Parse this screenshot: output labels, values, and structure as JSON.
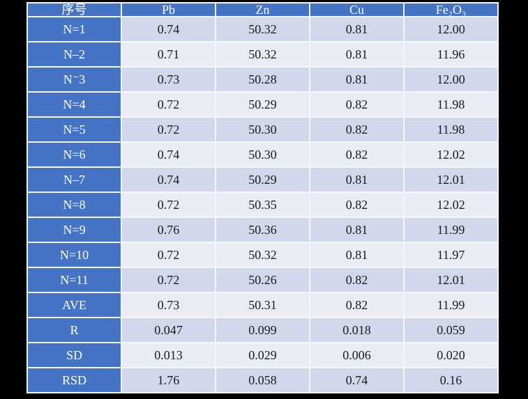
{
  "colors": {
    "page_background": "#000000",
    "header_blue": "#4674c5",
    "band_dark": "#d2d8ec",
    "band_light": "#e9ecf5",
    "grid_line": "#f5f6fa",
    "header_text": "#ffffff",
    "data_text": "#1a1a1a"
  },
  "chart_data": {
    "type": "table",
    "columns": [
      "序号",
      "Pb",
      "Zn",
      "Cu",
      "Fe₂O₃"
    ],
    "rows": [
      {
        "label": "N=1",
        "values": [
          "0.74",
          "50.32",
          "0.81",
          "12.00"
        ]
      },
      {
        "label": "N–2",
        "values": [
          "0.71",
          "50.32",
          "0.81",
          "11.96"
        ]
      },
      {
        "label": "N⁻3",
        "values": [
          "0.73",
          "50.28",
          "0.81",
          "12.00"
        ]
      },
      {
        "label": "N=4",
        "values": [
          "0.72",
          "50.29",
          "0.82",
          "11.98"
        ]
      },
      {
        "label": "N=5",
        "values": [
          "0.72",
          "50.30",
          "0.82",
          "11.98"
        ]
      },
      {
        "label": "N=6",
        "values": [
          "0.74",
          "50.30",
          "0.82",
          "12.02"
        ]
      },
      {
        "label": "N–7",
        "values": [
          "0.74",
          "50.29",
          "0.81",
          "12.01"
        ]
      },
      {
        "label": "N=8",
        "values": [
          "0.72",
          "50.35",
          "0.82",
          "12.02"
        ]
      },
      {
        "label": "N=9",
        "values": [
          "0.76",
          "50.36",
          "0.81",
          "11.99"
        ]
      },
      {
        "label": "N=10",
        "values": [
          "0.72",
          "50.32",
          "0.81",
          "11.97"
        ]
      },
      {
        "label": "N=11",
        "values": [
          "0.72",
          "50.26",
          "0.82",
          "12.01"
        ]
      },
      {
        "label": "AVE",
        "values": [
          "0.73",
          "50.31",
          "0.82",
          "11.99"
        ]
      },
      {
        "label": "R",
        "values": [
          "0.047",
          "0.099",
          "0.018",
          "0.059"
        ]
      },
      {
        "label": "SD",
        "values": [
          "0.013",
          "0.029",
          "0.006",
          "0.020"
        ]
      },
      {
        "label": "RSD",
        "values": [
          "1.76",
          "0.058",
          "0.74",
          "0.16"
        ]
      }
    ]
  }
}
